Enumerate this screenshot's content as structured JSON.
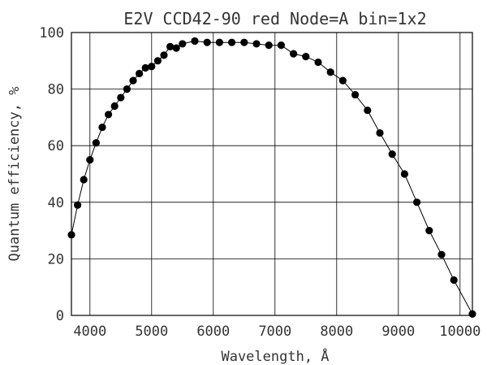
{
  "chart_data": {
    "type": "scatter",
    "title": "E2V CCD42-90 red Node=A bin=1x2",
    "xlabel": "Wavelength, Å",
    "ylabel": "Quantum efficiency, %",
    "xlim": [
      3700,
      10200
    ],
    "ylim": [
      0,
      100
    ],
    "xticks": [
      4000,
      5000,
      6000,
      7000,
      8000,
      9000,
      10000
    ],
    "yticks": [
      0,
      20,
      40,
      60,
      80,
      100
    ],
    "grid": true,
    "legend": "none",
    "series": [
      {
        "markers": true,
        "line": true,
        "points": [
          [
            3700,
            28.5
          ],
          [
            3800,
            39
          ],
          [
            3900,
            48
          ],
          [
            4000,
            55
          ],
          [
            4100,
            61
          ],
          [
            4200,
            66.5
          ],
          [
            4300,
            71
          ],
          [
            4400,
            74
          ],
          [
            4500,
            77
          ],
          [
            4600,
            80
          ],
          [
            4700,
            83
          ],
          [
            4800,
            85.5
          ],
          [
            4900,
            87.5
          ],
          [
            5000,
            88
          ],
          [
            5100,
            90
          ],
          [
            5200,
            92
          ],
          [
            5300,
            95
          ],
          [
            5400,
            94.5
          ],
          [
            5500,
            96
          ],
          [
            5700,
            97
          ],
          [
            5900,
            96.5
          ],
          [
            6100,
            96.5
          ],
          [
            6300,
            96.5
          ],
          [
            6500,
            96.5
          ],
          [
            6700,
            96
          ],
          [
            6900,
            95.5
          ],
          [
            7100,
            95.5
          ],
          [
            7300,
            92.5
          ],
          [
            7500,
            91.5
          ],
          [
            7700,
            89.5
          ],
          [
            7900,
            86
          ],
          [
            8100,
            83
          ],
          [
            8300,
            78
          ],
          [
            8500,
            72.5
          ],
          [
            8700,
            64.5
          ],
          [
            8900,
            57
          ],
          [
            9100,
            50
          ],
          [
            9300,
            40
          ],
          [
            9500,
            30
          ],
          [
            9700,
            21.5
          ],
          [
            9900,
            12.5
          ],
          [
            10200,
            0.5
          ]
        ]
      }
    ]
  },
  "colors": {
    "grid": "#000000",
    "marker": "#000000",
    "text": "#333333",
    "background": "#ffffff"
  }
}
